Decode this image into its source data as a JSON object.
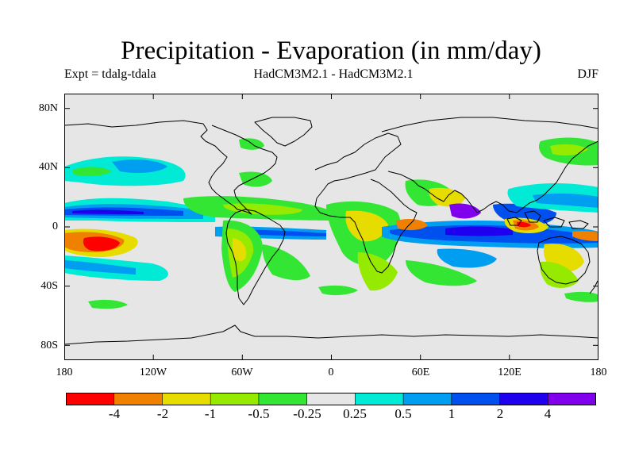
{
  "title": "Precipitation - Evaporation (in mm/day)",
  "subtitle_left": "Expt = tdalg-tdala",
  "subtitle_center": "HadCM3M2.1 - HadCM3M2.1",
  "subtitle_right": "DJF",
  "y_ticks": [
    "80N",
    "40N",
    "0",
    "40S",
    "80S"
  ],
  "x_ticks": [
    "180",
    "120W",
    "60W",
    "0",
    "60E",
    "120E",
    "180"
  ],
  "colorbar": {
    "colors": [
      "#ff0000",
      "#f08000",
      "#e6dc00",
      "#96ea00",
      "#33e633",
      "#e6e6e6",
      "#00ead6",
      "#009ef0",
      "#0050f0",
      "#1e00ee",
      "#8000ee"
    ],
    "labels": [
      "-4",
      "-2",
      "-1",
      "-0.5",
      "-0.25",
      "0.25",
      "0.5",
      "1",
      "2",
      "4"
    ]
  },
  "background_color": "#e6e6e6"
}
